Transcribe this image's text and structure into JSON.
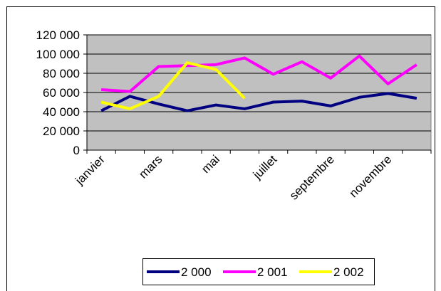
{
  "chart_data": {
    "type": "line",
    "categories": [
      "janvier",
      null,
      "mars",
      null,
      "mai",
      null,
      "juillet",
      null,
      "septembre",
      null,
      "novembre",
      null
    ],
    "series": [
      {
        "name": "2 000",
        "color": "#000080",
        "values": [
          41000,
          56000,
          48000,
          41000,
          47000,
          43000,
          50000,
          51000,
          46000,
          55000,
          59000,
          54000
        ]
      },
      {
        "name": "2 001",
        "color": "#ff00ff",
        "values": [
          63000,
          61000,
          87000,
          88000,
          89000,
          96000,
          79000,
          92000,
          75000,
          98000,
          69000,
          89000
        ]
      },
      {
        "name": "2 002",
        "color": "#ffff00",
        "values": [
          50000,
          43000,
          56000,
          91000,
          84000,
          54000,
          null,
          null,
          null,
          null,
          null,
          null
        ]
      }
    ],
    "ylim": [
      0,
      120000
    ],
    "yticks": [
      0,
      {
        "value": 20000,
        "label": "20 000"
      },
      {
        "value": 40000,
        "label": "40 000"
      },
      {
        "value": 60000,
        "label": "60 000"
      },
      {
        "value": 80000,
        "label": "80 000"
      },
      {
        "value": 100000,
        "label": "100 000"
      },
      {
        "value": 120000,
        "label": "120 000"
      }
    ],
    "grid": true,
    "plot_background": "#c0c0c0",
    "legend": "bottom"
  }
}
